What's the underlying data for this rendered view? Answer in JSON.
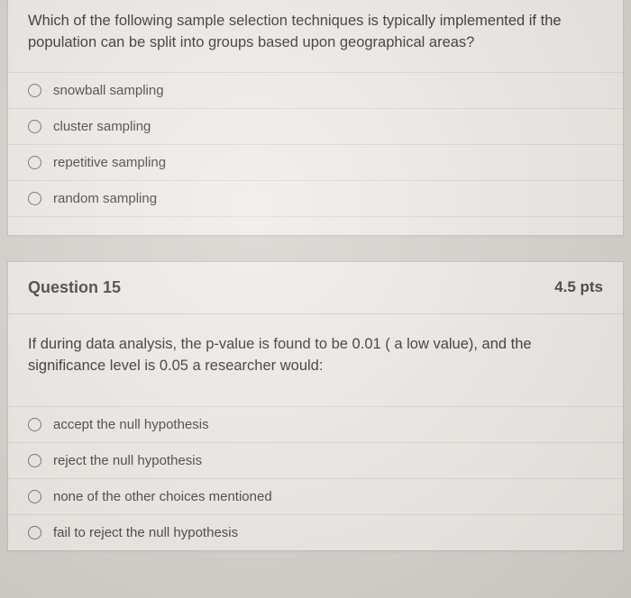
{
  "question14": {
    "text": "Which of the following sample selection techniques is typically implemented if the population can be split into groups based upon geographical areas?",
    "options": [
      "snowball sampling",
      "cluster sampling",
      "repetitive sampling",
      "random sampling"
    ]
  },
  "question15": {
    "title": "Question 15",
    "points": "4.5 pts",
    "text": "If during data analysis, the p-value is found to be 0.01 ( a low value), and the significance level is 0.05 a researcher would:",
    "options": [
      "accept the null hypothesis",
      "reject the null hypothesis",
      "none of the other choices mentioned",
      "fail to reject the null hypothesis"
    ]
  },
  "colors": {
    "page_bg": "#d8d5d0",
    "card_bg": "#efede9",
    "border": "#c9c6c0",
    "divider": "#dedbd5",
    "text": "#3a3834",
    "radio_border": "#787570"
  }
}
